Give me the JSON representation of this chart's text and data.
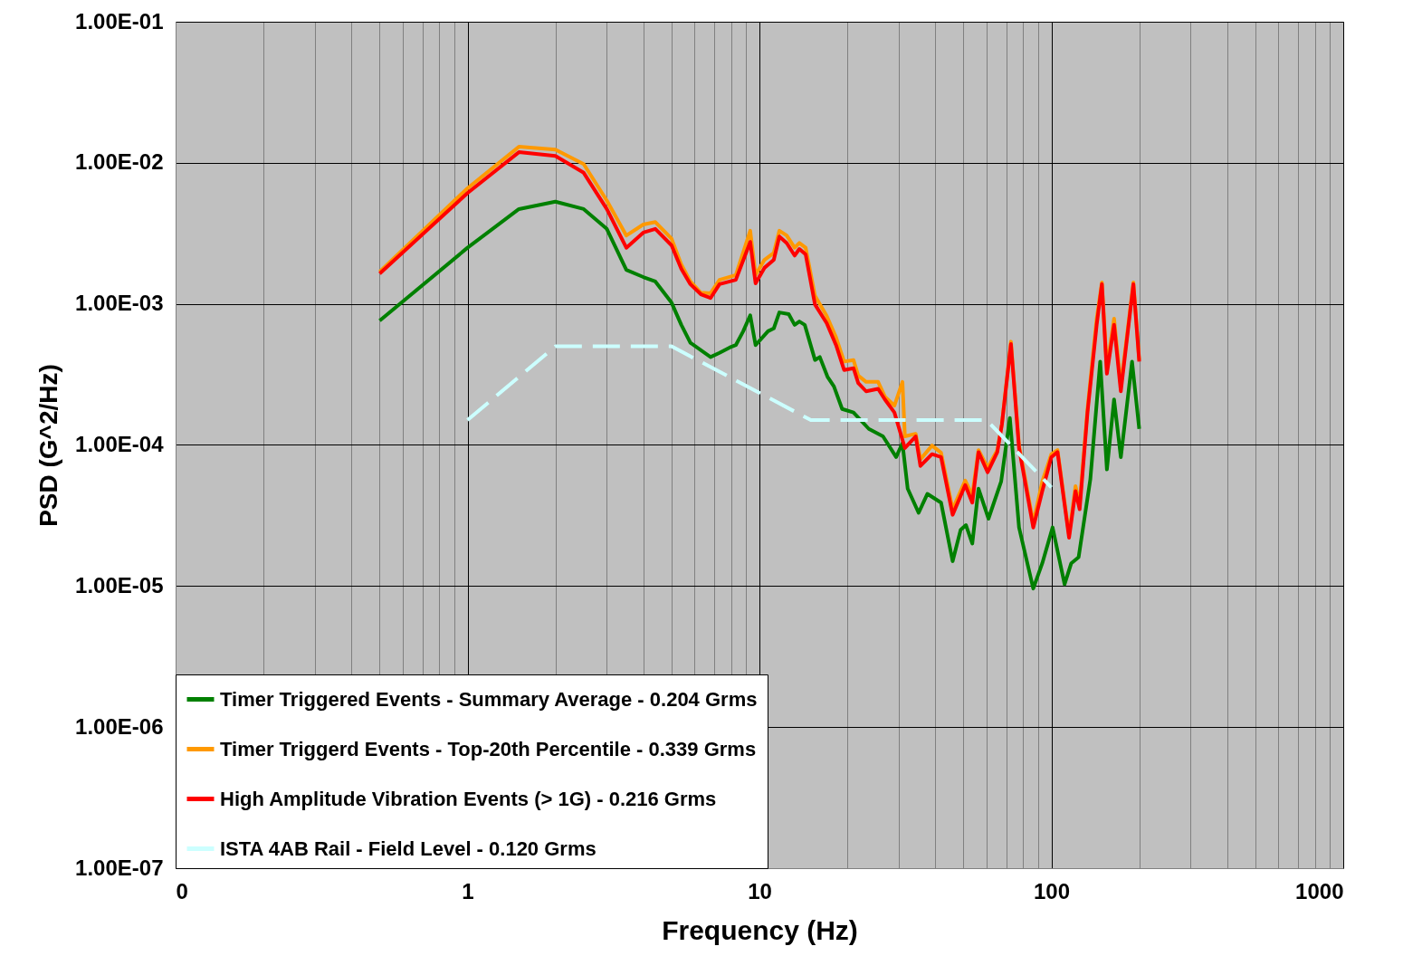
{
  "chart_data": {
    "type": "line",
    "xlabel": "Frequency (Hz)",
    "ylabel": "PSD (G^2/Hz)",
    "log": "xy",
    "grid": true,
    "legend": "bottom left",
    "marker": "none",
    "xlim": [
      0.1,
      1000
    ],
    "ylim": [
      1e-07,
      0.1
    ],
    "xticks": [
      {
        "value": 0.1,
        "label": "0"
      },
      {
        "value": 0.2,
        "label": null
      },
      {
        "value": 0.3,
        "label": null
      },
      {
        "value": 0.4,
        "label": null
      },
      {
        "value": 0.5,
        "label": null
      },
      {
        "value": 0.6,
        "label": null
      },
      {
        "value": 0.7,
        "label": null
      },
      {
        "value": 0.8,
        "label": null
      },
      {
        "value": 0.9,
        "label": null
      },
      1,
      {
        "value": 2,
        "label": null
      },
      {
        "value": 3,
        "label": null
      },
      {
        "value": 4,
        "label": null
      },
      {
        "value": 5,
        "label": null
      },
      {
        "value": 6,
        "label": null
      },
      {
        "value": 7,
        "label": null
      },
      {
        "value": 8,
        "label": null
      },
      {
        "value": 9,
        "label": null
      },
      10,
      {
        "value": 20,
        "label": null
      },
      {
        "value": 30,
        "label": null
      },
      {
        "value": 40,
        "label": null
      },
      {
        "value": 50,
        "label": null
      },
      {
        "value": 60,
        "label": null
      },
      {
        "value": 70,
        "label": null
      },
      {
        "value": 80,
        "label": null
      },
      {
        "value": 90,
        "label": null
      },
      100,
      {
        "value": 200,
        "label": null
      },
      {
        "value": 300,
        "label": null
      },
      {
        "value": 400,
        "label": null
      },
      {
        "value": 500,
        "label": null
      },
      {
        "value": 600,
        "label": null
      },
      {
        "value": 700,
        "label": null
      },
      {
        "value": 800,
        "label": null
      },
      {
        "value": 900,
        "label": null
      },
      1000
    ],
    "yticks": [
      {
        "value": 1e-07,
        "label": "1.00E-07"
      },
      {
        "value": 1e-06,
        "label": "1.00E-06"
      },
      {
        "value": 1e-05,
        "label": "1.00E-05"
      },
      {
        "value": 0.0001,
        "label": "1.00E-04"
      },
      {
        "value": 0.001,
        "label": "1.00E-03"
      },
      {
        "value": 0.01,
        "label": "1.00E-02"
      },
      {
        "value": 0.1,
        "label": "1.00E-01"
      }
    ],
    "series": [
      {
        "name": "Timer Triggered Events - Summary Average - 0.204 Grms",
        "color": "#008000",
        "line_style": "solid",
        "x": [
          0.5,
          1,
          1.5,
          2,
          2.5,
          3,
          3.5,
          4,
          4.4,
          5,
          5.4,
          5.8,
          6.8,
          7.3,
          7.9,
          8.3,
          8.8,
          9.3,
          9.7,
          10.7,
          11.2,
          11.7,
          12.6,
          13.2,
          13.7,
          14.3,
          15.5,
          16.1,
          17.1,
          18,
          19.2,
          21,
          23.7,
          26.5,
          29.4,
          30.9,
          32.2,
          35.1,
          37.6,
          41.9,
          45.9,
          48.9,
          51,
          53.6,
          56.3,
          60.9,
          67.3,
          72.1,
          77.5,
          86.7,
          93.1,
          101,
          111,
          117,
          124,
          136,
          147,
          155,
          164,
          173,
          189,
          200
        ],
        "values": [
          0.00076,
          0.0025,
          0.0047,
          0.0053,
          0.0047,
          0.0034,
          0.00174,
          0.00155,
          0.00144,
          0.00102,
          0.00071,
          0.00053,
          0.00042,
          0.00045,
          0.00049,
          0.00051,
          0.00064,
          0.00083,
          0.00051,
          0.00064,
          0.00067,
          0.00087,
          0.000845,
          0.00071,
          0.00075,
          0.00071,
          0.0004,
          0.00042,
          0.000305,
          0.00026,
          0.00018,
          0.00017,
          0.00013,
          0.000115,
          8.2e-05,
          0.000103,
          4.9e-05,
          3.3e-05,
          4.5e-05,
          3.9e-05,
          1.5e-05,
          2.5e-05,
          2.7e-05,
          2e-05,
          4.9e-05,
          3e-05,
          5.5e-05,
          0.000155,
          2.6e-05,
          9.6e-06,
          1.45e-05,
          2.6e-05,
          1.03e-05,
          1.45e-05,
          1.6e-05,
          5.7e-05,
          0.00039,
          6.7e-05,
          0.00021,
          8.2e-05,
          0.00039,
          0.00013
        ]
      },
      {
        "name": "Timer Triggerd Events - Top-20th Percentile - 0.339 Grms",
        "color": "#ff9900",
        "line_style": "solid",
        "x": [
          0.5,
          1,
          1.5,
          2,
          2.5,
          3,
          3.5,
          4,
          4.4,
          5,
          5.4,
          5.8,
          6.3,
          6.8,
          7.3,
          8.3,
          9.3,
          9.7,
          10.4,
          11.2,
          11.7,
          12.4,
          13.2,
          13.7,
          14.4,
          15.5,
          17,
          18.3,
          19.5,
          21,
          21.8,
          23.2,
          25.5,
          26.9,
          29,
          30.9,
          31.5,
          34.3,
          35.6,
          39,
          41.9,
          45.9,
          50.7,
          53.6,
          56.3,
          60.5,
          65.3,
          67.7,
          72.7,
          77.5,
          86.7,
          93.1,
          100,
          105,
          115,
          121,
          125,
          133,
          143,
          149,
          155,
          164,
          173,
          191,
          200
        ],
        "values": [
          0.00169,
          0.0066,
          0.013,
          0.0124,
          0.0098,
          0.0054,
          0.00305,
          0.00365,
          0.0038,
          0.0029,
          0.0019,
          0.00144,
          0.0012,
          0.00119,
          0.00148,
          0.0016,
          0.0033,
          0.0016,
          0.00205,
          0.0023,
          0.0033,
          0.00305,
          0.0025,
          0.0027,
          0.0025,
          0.00114,
          0.00082,
          0.00058,
          0.00039,
          0.0004,
          0.00031,
          0.00028,
          0.00028,
          0.00022,
          0.00019,
          0.00028,
          0.000115,
          0.00012,
          7.9e-05,
          9.9e-05,
          8.8e-05,
          3.5e-05,
          5.6e-05,
          4.4e-05,
          9.2e-05,
          6.9e-05,
          9.2e-05,
          0.00014,
          0.00054,
          9.9e-05,
          2.8e-05,
          5.5e-05,
          8.6e-05,
          9.2e-05,
          2.3e-05,
          5.1e-05,
          3.8e-05,
          0.00018,
          0.000785,
          0.00142,
          0.00035,
          0.000785,
          0.00026,
          0.00142,
          0.0004
        ]
      },
      {
        "name": "High Amplitude Vibration Events (> 1G) - 0.216 Grms",
        "color": "#ff0000",
        "line_style": "solid",
        "x": [
          0.5,
          1,
          1.5,
          2,
          2.5,
          3,
          3.5,
          4,
          4.4,
          5,
          5.4,
          5.8,
          6.3,
          6.8,
          7.3,
          8.3,
          9.3,
          9.7,
          10.4,
          11.2,
          11.7,
          12.4,
          13.2,
          13.7,
          14.4,
          15.5,
          17,
          18.3,
          19.5,
          21,
          21.8,
          23.2,
          25.5,
          26.9,
          29,
          31.5,
          34.3,
          35.6,
          39,
          41.9,
          45.9,
          50.7,
          53.6,
          56.3,
          60.5,
          65.3,
          67.7,
          72.7,
          77.5,
          86.7,
          93.1,
          100,
          105,
          115,
          121,
          125,
          133,
          143,
          149,
          155,
          164,
          173,
          191,
          200
        ],
        "values": [
          0.00164,
          0.0061,
          0.0119,
          0.0112,
          0.0085,
          0.0047,
          0.0025,
          0.0032,
          0.0034,
          0.0026,
          0.00177,
          0.00138,
          0.00117,
          0.0011,
          0.00138,
          0.00148,
          0.00275,
          0.0014,
          0.0018,
          0.00205,
          0.003,
          0.0027,
          0.0022,
          0.00245,
          0.00224,
          0.00099,
          0.00073,
          0.00051,
          0.00034,
          0.00035,
          0.000275,
          0.00024,
          0.00025,
          0.00021,
          0.00017,
          9.5e-05,
          0.000115,
          7.1e-05,
          8.6e-05,
          8.2e-05,
          3.2e-05,
          5.2e-05,
          3.9e-05,
          8.9e-05,
          6.4e-05,
          8.9e-05,
          0.00014,
          0.00052,
          9.5e-05,
          2.6e-05,
          4.7e-05,
          8.2e-05,
          8.9e-05,
          2.2e-05,
          4.7e-05,
          3.5e-05,
          0.00017,
          0.00071,
          0.00138,
          0.00032,
          0.00071,
          0.00024,
          0.00138,
          0.00039
        ]
      },
      {
        "name": "ISTA 4AB Rail - Field Level - 0.120 Grms",
        "color": "#ccffff",
        "line_style": "dashed",
        "x": [
          1,
          2,
          5,
          15,
          60,
          100
        ],
        "values": [
          0.00015,
          0.0005,
          0.0005,
          0.00015,
          0.00015,
          5e-05
        ]
      }
    ]
  }
}
